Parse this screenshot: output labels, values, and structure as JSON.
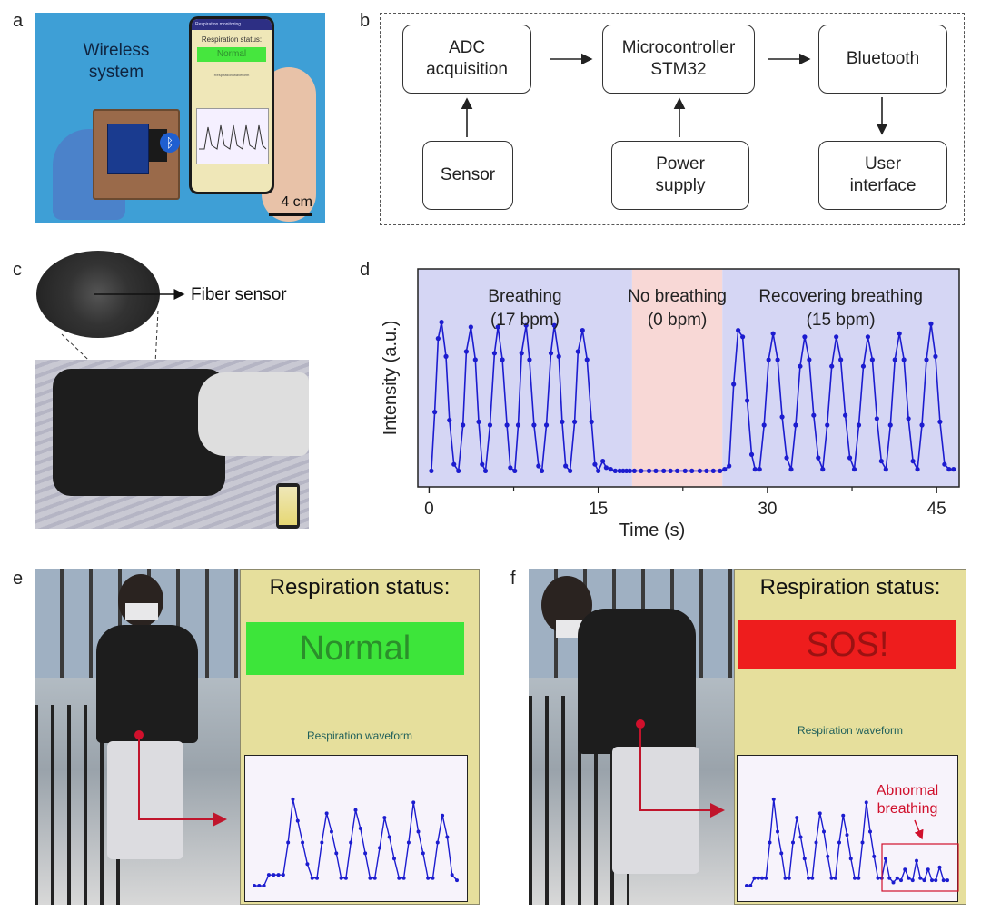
{
  "panel_labels": {
    "a": "a",
    "b": "b",
    "c": "c",
    "d": "d",
    "e": "e",
    "f": "f"
  },
  "panel_a": {
    "label": "Wireless\nsystem",
    "phone_header": "Respiration monitoring",
    "phone_status": "Respiration status:",
    "phone_value": "Normal",
    "phone_wave_label": "Respiration waveform",
    "scale_bar": "4 cm",
    "colors": {
      "background": "#3e9fd6",
      "status_green": "#46e63e"
    }
  },
  "panel_b": {
    "boxes": {
      "adc": "ADC\nacquisition",
      "mcu": "Microcontroller\nSTM32",
      "bluetooth": "Bluetooth",
      "sensor": "Sensor",
      "power": "Power\nsupply",
      "ui": "User\ninterface"
    }
  },
  "panel_c": {
    "fiber_label": "Fiber sensor"
  },
  "chart_data": {
    "type": "line",
    "xlabel": "Time (s)",
    "ylabel": "Intensity (a.u.)",
    "xlim": [
      -1,
      47
    ],
    "ylim": [
      0,
      1
    ],
    "xticks": [
      0,
      15,
      30,
      45
    ],
    "regions": [
      {
        "label": "Breathing",
        "sublabel": "(17 bpm)",
        "x_range": [
          -1,
          18
        ],
        "color": "#d5d6f4"
      },
      {
        "label": "No breathing",
        "sublabel": "(0 bpm)",
        "x_range": [
          18,
          26
        ],
        "color": "#f8d8d6"
      },
      {
        "label": "Recovering breathing",
        "sublabel": "(15 bpm)",
        "x_range": [
          26,
          47
        ],
        "color": "#d5d6f4"
      }
    ],
    "series": [
      {
        "color": "#1c1ccf",
        "x": [
          0.2,
          0.5,
          0.8,
          1.1,
          1.5,
          1.8,
          2.2,
          2.6,
          3.0,
          3.3,
          3.7,
          4.1,
          4.4,
          4.7,
          5.0,
          5.4,
          5.8,
          6.1,
          6.5,
          6.9,
          7.2,
          7.6,
          7.9,
          8.2,
          8.6,
          8.9,
          9.3,
          9.7,
          10.0,
          10.4,
          10.8,
          11.1,
          11.5,
          11.8,
          12.1,
          12.5,
          12.9,
          13.2,
          13.6,
          14.0,
          14.4,
          14.7,
          15.0,
          15.4,
          15.7,
          16.1,
          16.5,
          16.9,
          17.2,
          17.5,
          17.8,
          18.2,
          18.8,
          19.5,
          20.1,
          20.8,
          21.4,
          22.0,
          22.7,
          23.3,
          24.0,
          24.6,
          25.2,
          25.8,
          26.2,
          26.6,
          27.0,
          27.4,
          27.8,
          28.2,
          28.6,
          28.9,
          29.3,
          29.7,
          30.1,
          30.5,
          30.9,
          31.3,
          31.7,
          32.1,
          32.5,
          32.9,
          33.3,
          33.7,
          34.1,
          34.5,
          34.9,
          35.3,
          35.7,
          36.1,
          36.5,
          36.9,
          37.3,
          37.7,
          38.1,
          38.5,
          38.9,
          39.3,
          39.7,
          40.1,
          40.5,
          40.9,
          41.3,
          41.7,
          42.1,
          42.5,
          42.9,
          43.3,
          43.7,
          44.1,
          44.5,
          44.9,
          45.3,
          45.7,
          46.1,
          46.5
        ],
        "y": [
          0.02,
          0.38,
          0.83,
          0.93,
          0.72,
          0.33,
          0.06,
          0.02,
          0.3,
          0.75,
          0.9,
          0.7,
          0.32,
          0.06,
          0.02,
          0.3,
          0.74,
          0.9,
          0.7,
          0.3,
          0.04,
          0.02,
          0.3,
          0.74,
          0.91,
          0.7,
          0.3,
          0.05,
          0.02,
          0.3,
          0.74,
          0.91,
          0.72,
          0.32,
          0.05,
          0.02,
          0.32,
          0.75,
          0.88,
          0.7,
          0.32,
          0.06,
          0.02,
          0.08,
          0.04,
          0.03,
          0.02,
          0.02,
          0.02,
          0.02,
          0.02,
          0.02,
          0.02,
          0.02,
          0.02,
          0.02,
          0.02,
          0.02,
          0.02,
          0.02,
          0.02,
          0.02,
          0.02,
          0.02,
          0.03,
          0.05,
          0.55,
          0.88,
          0.84,
          0.45,
          0.12,
          0.03,
          0.03,
          0.3,
          0.7,
          0.86,
          0.7,
          0.35,
          0.1,
          0.03,
          0.3,
          0.66,
          0.84,
          0.7,
          0.36,
          0.1,
          0.03,
          0.3,
          0.66,
          0.84,
          0.7,
          0.36,
          0.1,
          0.03,
          0.3,
          0.66,
          0.84,
          0.7,
          0.34,
          0.08,
          0.03,
          0.3,
          0.7,
          0.86,
          0.7,
          0.34,
          0.08,
          0.03,
          0.3,
          0.7,
          0.92,
          0.72,
          0.32,
          0.06,
          0.03,
          0.03
        ]
      }
    ]
  },
  "panel_e": {
    "title": "Respiration status:",
    "status": "Normal",
    "wave_label": "Respiration waveform",
    "colors": {
      "status_bg": "#3de53a",
      "status_text": "#2b8f2b",
      "screen": "#e6df9c",
      "wave": "#1c1ccf"
    },
    "wave_values": [
      0.05,
      0.05,
      0.05,
      0.15,
      0.15,
      0.15,
      0.15,
      0.45,
      0.85,
      0.65,
      0.45,
      0.25,
      0.12,
      0.12,
      0.45,
      0.72,
      0.55,
      0.35,
      0.12,
      0.12,
      0.45,
      0.75,
      0.58,
      0.35,
      0.12,
      0.12,
      0.4,
      0.68,
      0.5,
      0.3,
      0.12,
      0.12,
      0.45,
      0.82,
      0.55,
      0.35,
      0.12,
      0.12,
      0.45,
      0.7,
      0.5,
      0.15,
      0.1
    ]
  },
  "panel_f": {
    "title": "Respiration status:",
    "status": "SOS!",
    "wave_label": "Respiration waveform",
    "annotation": "Abnormal\nbreathing",
    "colors": {
      "status_bg": "#ee1d1d",
      "status_text": "#9b1212",
      "screen": "#e6df9c",
      "wave": "#1c1ccf",
      "annotation": "#d0102c"
    },
    "wave_values": [
      0.05,
      0.05,
      0.12,
      0.12,
      0.12,
      0.12,
      0.45,
      0.85,
      0.55,
      0.35,
      0.12,
      0.12,
      0.45,
      0.68,
      0.5,
      0.3,
      0.12,
      0.12,
      0.45,
      0.72,
      0.55,
      0.32,
      0.12,
      0.12,
      0.45,
      0.7,
      0.52,
      0.3,
      0.12,
      0.12,
      0.45,
      0.82,
      0.55,
      0.32,
      0.12,
      0.12,
      0.3,
      0.12,
      0.08,
      0.12,
      0.1,
      0.2,
      0.12,
      0.1,
      0.28,
      0.12,
      0.1,
      0.2,
      0.1,
      0.1,
      0.22,
      0.1,
      0.1
    ]
  }
}
